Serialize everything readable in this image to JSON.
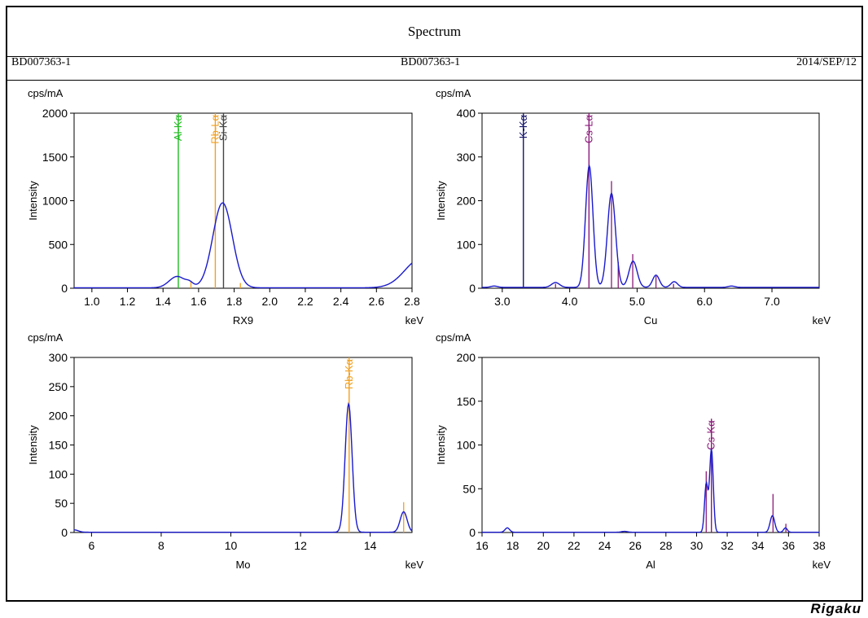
{
  "header": {
    "title": "Spectrum",
    "sample_left": "BD007363-1",
    "sample_center": "BD007363-1",
    "date": "2014/SEP/12"
  },
  "footer": {
    "logo": "Rigaku"
  },
  "chart_data": [
    {
      "type": "line",
      "unit_label": "cps/mA",
      "ylabel": "Intensity",
      "xlabel": "RX9",
      "xunit": "keV",
      "xlim": [
        0.9,
        2.8
      ],
      "ylim": [
        0,
        2000
      ],
      "xticks": [
        1.0,
        1.2,
        1.4,
        1.6,
        1.8,
        2.0,
        2.2,
        2.4,
        2.6,
        2.8
      ],
      "yticks": [
        0,
        500,
        1000,
        1500,
        2000
      ],
      "tick_decimals": 1,
      "series_color": "#1a1acc",
      "peaks": [
        {
          "x": 1.48,
          "amp": 130,
          "w": 0.045
        },
        {
          "x": 1.55,
          "amp": 40,
          "w": 0.02
        },
        {
          "x": 1.735,
          "amp": 970,
          "w": 0.055
        },
        {
          "x": 2.85,
          "amp": 330,
          "w": 0.09
        }
      ],
      "baseline": 5,
      "lines": [
        {
          "label": "Al-Kα",
          "x": 1.486,
          "color": "#22bb22",
          "full": true
        },
        {
          "label": "Rb-Lα",
          "x": 1.694,
          "color": "#f0a020",
          "full": true
        },
        {
          "label": "Si-Kα",
          "x": 1.74,
          "color": "#444444",
          "full": true
        }
      ],
      "markers": [
        {
          "x": 1.557,
          "y": 80,
          "color": "#f0a020"
        },
        {
          "x": 1.835,
          "y": 60,
          "color": "#f0a020"
        }
      ]
    },
    {
      "type": "line",
      "unit_label": "cps/mA",
      "ylabel": "Intensity",
      "xlabel": "Cu",
      "xunit": "keV",
      "xlim": [
        2.7,
        7.7
      ],
      "ylim": [
        0,
        400
      ],
      "xticks": [
        3.0,
        4.0,
        5.0,
        6.0,
        7.0
      ],
      "yticks": [
        0,
        100,
        200,
        300,
        400
      ],
      "tick_decimals": 1,
      "series_color": "#1a1acc",
      "peaks": [
        {
          "x": 2.88,
          "amp": 3,
          "w": 0.05
        },
        {
          "x": 3.79,
          "amp": 11,
          "w": 0.06
        },
        {
          "x": 4.29,
          "amp": 278,
          "w": 0.055
        },
        {
          "x": 4.62,
          "amp": 215,
          "w": 0.06
        },
        {
          "x": 4.94,
          "amp": 60,
          "w": 0.06
        },
        {
          "x": 5.28,
          "amp": 28,
          "w": 0.05
        },
        {
          "x": 5.55,
          "amp": 13,
          "w": 0.05
        },
        {
          "x": 6.4,
          "amp": 3,
          "w": 0.05
        }
      ],
      "baseline": 2,
      "lines": [
        {
          "label": "K-Kα",
          "x": 3.313,
          "color": "#15156b",
          "full": true
        },
        {
          "label": "Cs-Lα",
          "x": 4.286,
          "color": "#8b1a7a",
          "full": true
        }
      ],
      "markers": [
        {
          "x": 3.79,
          "y": 10,
          "color": "#8b1a7a"
        },
        {
          "x": 4.62,
          "y": 245,
          "color": "#8b1a7a"
        },
        {
          "x": 4.72,
          "y": 60,
          "color": "#8b1a7a"
        },
        {
          "x": 4.935,
          "y": 78,
          "color": "#8b1a7a"
        },
        {
          "x": 5.28,
          "y": 28,
          "color": "#8b1a7a"
        },
        {
          "x": 5.54,
          "y": 10,
          "color": "#8b1a7a"
        }
      ]
    },
    {
      "type": "line",
      "unit_label": "cps/mA",
      "ylabel": "Intensity",
      "xlabel": "Mo",
      "xunit": "keV",
      "xlim": [
        5.5,
        15.2
      ],
      "ylim": [
        0,
        300
      ],
      "xticks": [
        6,
        8,
        10,
        12,
        14
      ],
      "yticks": [
        0,
        50,
        100,
        150,
        200,
        250,
        300
      ],
      "tick_decimals": 0,
      "series_color": "#1a1acc",
      "peaks": [
        {
          "x": 5.5,
          "amp": 4,
          "w": 0.12
        },
        {
          "x": 13.38,
          "amp": 220,
          "w": 0.1
        },
        {
          "x": 14.96,
          "amp": 35,
          "w": 0.1
        }
      ],
      "baseline": 0.5,
      "lines": [
        {
          "label": "Rb-Kα",
          "x": 13.395,
          "color": "#f0a020",
          "full": true
        }
      ],
      "markers": [
        {
          "x": 14.96,
          "y": 52,
          "color": "#f0a020"
        }
      ]
    },
    {
      "type": "line",
      "unit_label": "cps/mA",
      "ylabel": "Intensity",
      "xlabel": "Al",
      "xunit": "keV",
      "xlim": [
        16,
        38
      ],
      "ylim": [
        0,
        200
      ],
      "xticks": [
        16,
        18,
        20,
        22,
        24,
        26,
        28,
        30,
        32,
        34,
        36,
        38
      ],
      "yticks": [
        0,
        50,
        100,
        150,
        200
      ],
      "tick_decimals": 0,
      "series_color": "#1a1acc",
      "peaks": [
        {
          "x": 17.65,
          "amp": 5,
          "w": 0.15
        },
        {
          "x": 30.63,
          "amp": 55,
          "w": 0.11
        },
        {
          "x": 30.97,
          "amp": 95,
          "w": 0.12
        },
        {
          "x": 34.95,
          "amp": 19,
          "w": 0.15
        },
        {
          "x": 35.8,
          "amp": 5,
          "w": 0.12
        },
        {
          "x": 25.3,
          "amp": 1,
          "w": 0.2
        }
      ],
      "baseline": 0.3,
      "lines": [
        {
          "label": "Cs-Kα",
          "x": 30.97,
          "color": "#8b1a7a",
          "full": false,
          "top": 130
        }
      ],
      "markers": [
        {
          "x": 30.63,
          "y": 70,
          "color": "#8b1a7a"
        },
        {
          "x": 34.99,
          "y": 44,
          "color": "#8b1a7a"
        },
        {
          "x": 35.83,
          "y": 10,
          "color": "#8b1a7a"
        }
      ]
    }
  ]
}
